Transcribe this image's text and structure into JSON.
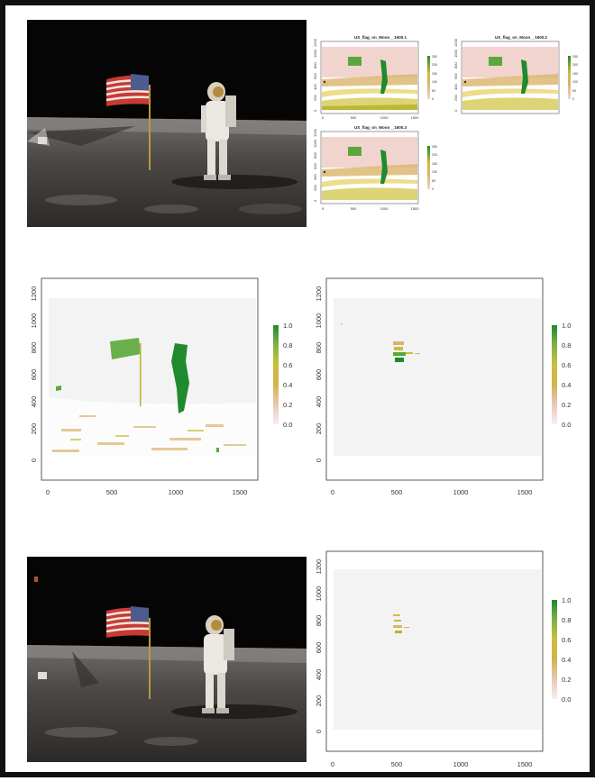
{
  "figure": {
    "photo_top": {
      "name": "moon-landing-photo"
    },
    "photo_bottom": {
      "name": "moon-landing-photo-masked"
    }
  },
  "colors": {
    "dark_green": "#1f8a2e",
    "green": "#5aa83a",
    "olive": "#b7b52b",
    "tan": "#d9b46a",
    "pink": "#f2d4cf",
    "white": "#ffffff",
    "plot_bg": "#f2f2f2"
  },
  "chart_data": [
    {
      "type": "heatmap",
      "title": "US_flag_on_Moon__1600.1",
      "x_ticks": [
        "0",
        "500",
        "1000",
        "1500"
      ],
      "y_ticks": [
        "0",
        "200",
        "400",
        "600",
        "800",
        "1000",
        "1200"
      ],
      "legend_ticks": [
        "0",
        "50",
        "100",
        "150",
        "200",
        "250"
      ],
      "xlim": [
        0,
        1600
      ],
      "ylim": [
        -100,
        1300
      ]
    },
    {
      "type": "heatmap",
      "title": "US_flag_on_Moon__1600.2",
      "y_ticks": [
        "0",
        "200",
        "400",
        "600",
        "800",
        "1000",
        "1200"
      ],
      "legend_ticks": [
        "0",
        "50",
        "100",
        "150",
        "200",
        "250"
      ],
      "xlim": [
        0,
        1600
      ],
      "ylim": [
        -100,
        1300
      ]
    },
    {
      "type": "heatmap",
      "title": "US_flag_on_Moon__1600.3",
      "x_ticks": [
        "0",
        "500",
        "1000",
        "1500"
      ],
      "y_ticks": [
        "0",
        "200",
        "400",
        "600",
        "800",
        "1000",
        "1200"
      ],
      "legend_ticks": [
        "0",
        "50",
        "100",
        "150",
        "200",
        "250"
      ],
      "xlim": [
        0,
        1600
      ],
      "ylim": [
        -100,
        1300
      ]
    },
    {
      "type": "heatmap",
      "x_ticks": [
        "0",
        "500",
        "1000",
        "1500"
      ],
      "y_ticks": [
        "0",
        "200",
        "400",
        "600",
        "800",
        "1000",
        "1200"
      ],
      "legend_ticks": [
        "0.0",
        "0.2",
        "0.4",
        "0.6",
        "0.8",
        "1.0"
      ],
      "xlim": [
        -50,
        1650
      ],
      "ylim": [
        -150,
        1350
      ]
    },
    {
      "type": "heatmap",
      "x_ticks": [
        "0",
        "500",
        "1000",
        "1500"
      ],
      "y_ticks": [
        "0",
        "200",
        "400",
        "600",
        "800",
        "1000",
        "1200"
      ],
      "legend_ticks": [
        "0.0",
        "0.2",
        "0.4",
        "0.6",
        "0.8",
        "1.0"
      ],
      "xlim": [
        -50,
        1650
      ],
      "ylim": [
        -150,
        1350
      ]
    },
    {
      "type": "heatmap",
      "x_ticks": [
        "0",
        "500",
        "1000",
        "1500"
      ],
      "y_ticks": [
        "0",
        "200",
        "400",
        "600",
        "800",
        "1000",
        "1200"
      ],
      "legend_ticks": [
        "0.0",
        "0.2",
        "0.4",
        "0.6",
        "0.8",
        "1.0"
      ],
      "xlim": [
        -50,
        1650
      ],
      "ylim": [
        -150,
        1350
      ]
    }
  ]
}
